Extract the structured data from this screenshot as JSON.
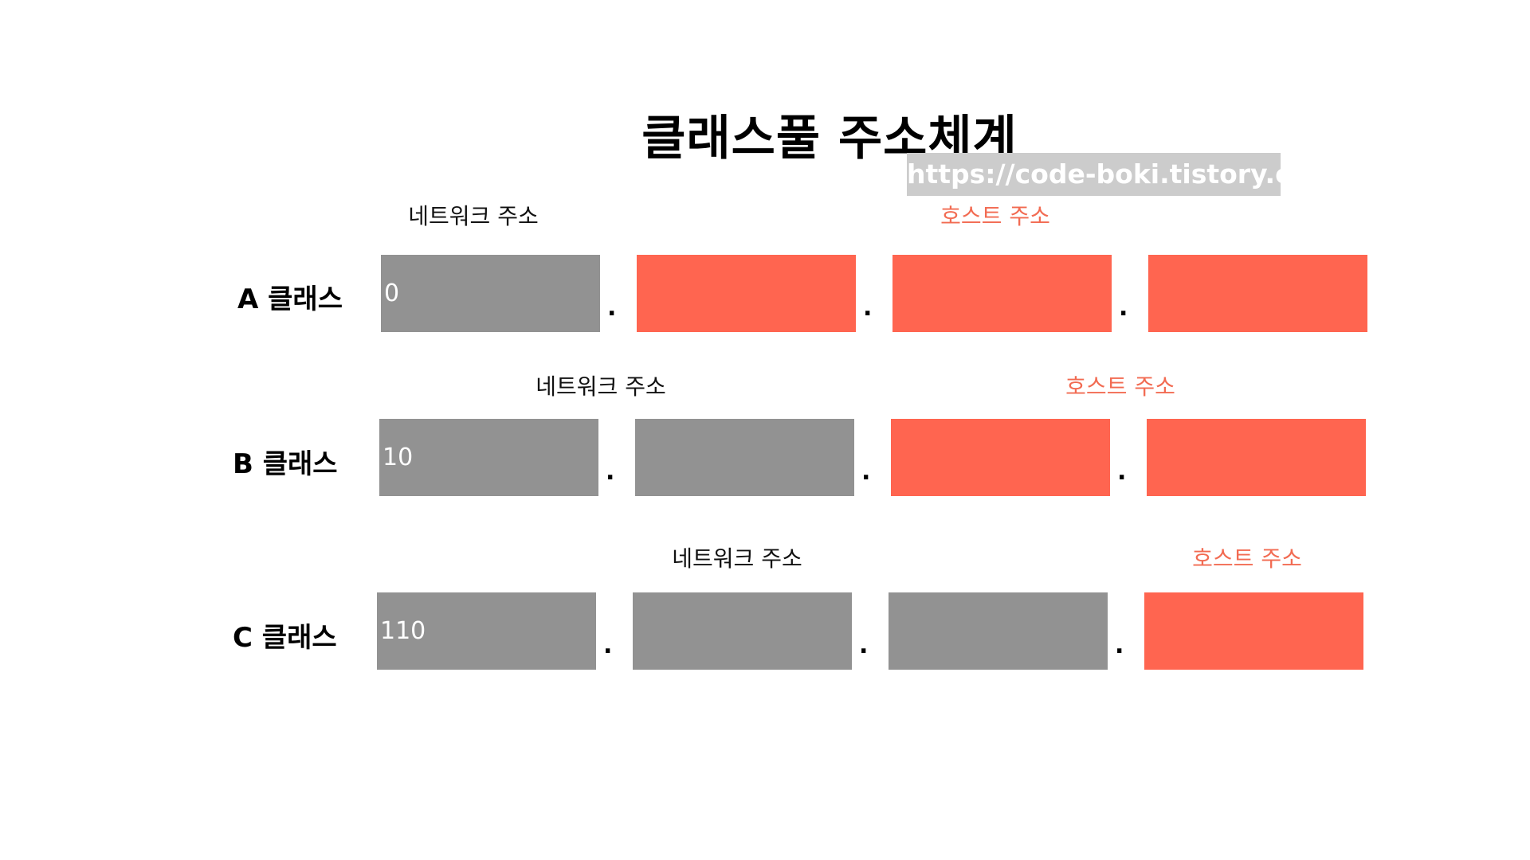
{
  "title": "클래스풀 주소체계",
  "watermark": "https://code-boki.tistory.com",
  "colors": {
    "network": "#929292",
    "host": "#ff6550",
    "host_label": "#f26b52",
    "watermark_bg": "#cccccc"
  },
  "network_label": "네트워크 주소",
  "host_label": "호스트 주소",
  "separator": ".",
  "classes": [
    {
      "label": "A 클래스",
      "prefix": "0",
      "octets": [
        "network",
        "host",
        "host",
        "host"
      ]
    },
    {
      "label": "B 클래스",
      "prefix": "10",
      "octets": [
        "network",
        "network",
        "host",
        "host"
      ]
    },
    {
      "label": "C 클래스",
      "prefix": "110",
      "octets": [
        "network",
        "network",
        "network",
        "host"
      ]
    }
  ]
}
